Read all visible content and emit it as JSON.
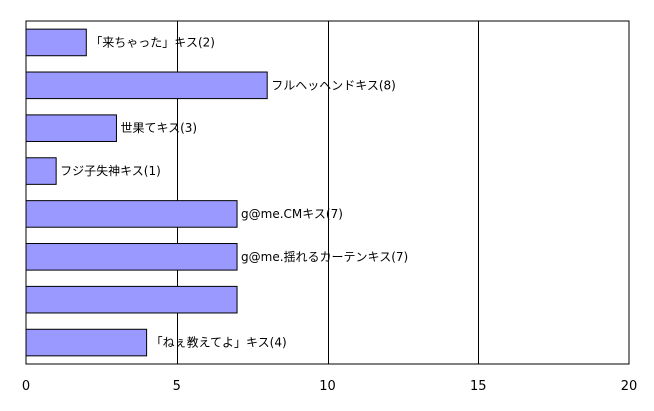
{
  "chart_data": {
    "type": "bar",
    "orientation": "horizontal",
    "title": "",
    "xlabel": "",
    "ylabel": "",
    "xlim": [
      0,
      20
    ],
    "x_ticks": [
      0,
      5,
      10,
      15,
      20
    ],
    "grid": "vertical major gridlines",
    "legend": "none",
    "bar_color": "#9999ff",
    "bars": [
      {
        "label": "「来ちゃった」キス(2)",
        "value": 2
      },
      {
        "label": "フルヘッヘンドキス(8)",
        "value": 8
      },
      {
        "label": "世果てキス(3)",
        "value": 3
      },
      {
        "label": "フジ子失神キス(1)",
        "value": 1
      },
      {
        "label": "g@me.CMキス(7)",
        "value": 7
      },
      {
        "label": "g@me.揺れるカーテンキス(7)",
        "value": 7
      },
      {
        "label": "",
        "value": 7
      },
      {
        "label": "「ねぇ教えてよ」キス(4)",
        "value": 4
      }
    ]
  }
}
